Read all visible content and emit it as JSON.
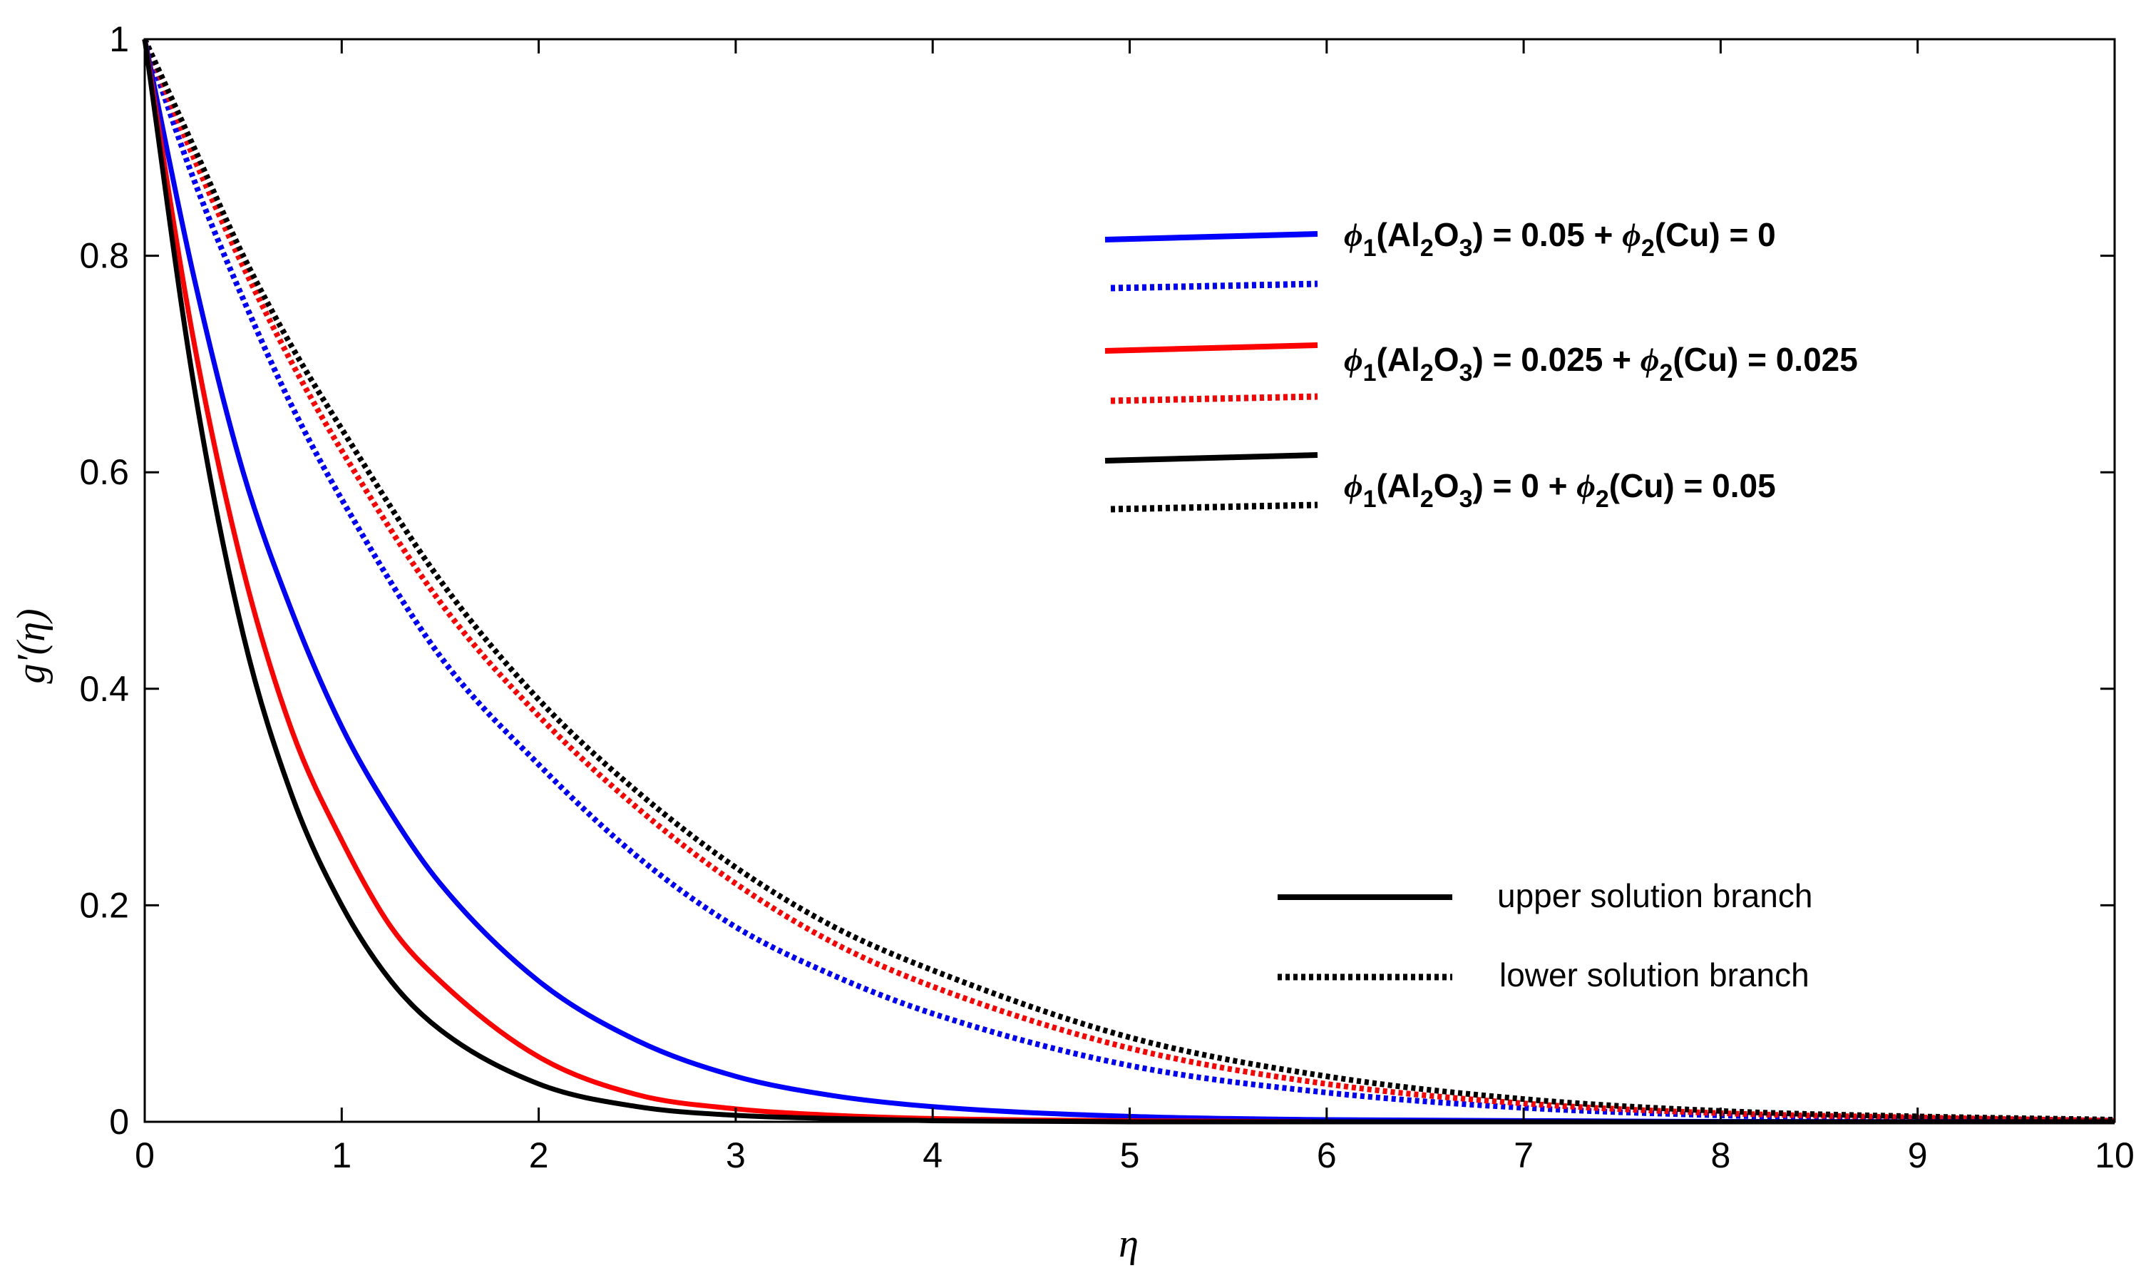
{
  "chart_data": {
    "type": "line",
    "title": "",
    "xlabel": "η",
    "ylabel": "g′(η)",
    "xlim": [
      0,
      10
    ],
    "ylim": [
      0,
      1
    ],
    "xticks": [
      0,
      1,
      2,
      3,
      4,
      5,
      6,
      7,
      8,
      9,
      10
    ],
    "yticks": [
      0,
      0.2,
      0.4,
      0.6,
      0.8,
      1
    ],
    "grid": false,
    "legend_position": "top-right",
    "series": [
      {
        "color": "#0000ff",
        "style": "solid",
        "x": [
          0,
          0.25,
          0.5,
          0.75,
          1,
          1.25,
          1.5,
          2,
          2.5,
          3,
          3.5,
          4,
          5,
          6,
          8,
          10
        ],
        "y": [
          1,
          0.78,
          0.6,
          0.47,
          0.365,
          0.285,
          0.22,
          0.13,
          0.075,
          0.042,
          0.024,
          0.014,
          0.005,
          0.002,
          0.0003,
          0
        ]
      },
      {
        "color": "#0000ff",
        "style": "dotted",
        "x": [
          0,
          0.25,
          0.5,
          0.75,
          1,
          1.5,
          2,
          2.5,
          3,
          3.5,
          4,
          5,
          6,
          7,
          8,
          9,
          10
        ],
        "y": [
          1,
          0.87,
          0.76,
          0.66,
          0.575,
          0.43,
          0.33,
          0.245,
          0.18,
          0.135,
          0.1,
          0.052,
          0.027,
          0.013,
          0.006,
          0.003,
          0.001
        ]
      },
      {
        "color": "#ff0000",
        "style": "solid",
        "x": [
          0,
          0.25,
          0.5,
          0.75,
          1,
          1.25,
          1.5,
          2,
          2.5,
          3,
          3.5,
          4,
          5,
          6,
          8,
          10
        ],
        "y": [
          1,
          0.72,
          0.51,
          0.36,
          0.26,
          0.18,
          0.13,
          0.06,
          0.025,
          0.012,
          0.006,
          0.003,
          0.001,
          0,
          0,
          0
        ]
      },
      {
        "color": "#ff0000",
        "style": "dotted",
        "x": [
          0,
          0.25,
          0.5,
          0.75,
          1,
          1.5,
          2,
          2.5,
          3,
          3.5,
          4,
          5,
          6,
          7,
          8,
          9,
          10
        ],
        "y": [
          1,
          0.89,
          0.79,
          0.7,
          0.62,
          0.48,
          0.375,
          0.29,
          0.22,
          0.165,
          0.125,
          0.068,
          0.035,
          0.017,
          0.008,
          0.004,
          0.001
        ]
      },
      {
        "color": "#000000",
        "style": "solid",
        "x": [
          0,
          0.25,
          0.5,
          0.75,
          1,
          1.25,
          1.5,
          2,
          2.5,
          3,
          3.5,
          4,
          5,
          6,
          8,
          10
        ],
        "y": [
          1,
          0.68,
          0.45,
          0.3,
          0.2,
          0.13,
          0.085,
          0.035,
          0.014,
          0.006,
          0.003,
          0.001,
          0,
          0,
          0,
          0
        ]
      },
      {
        "color": "#000000",
        "style": "dotted",
        "x": [
          0,
          0.25,
          0.5,
          0.75,
          1,
          1.5,
          2,
          2.5,
          3,
          3.5,
          4,
          5,
          6,
          7,
          8,
          9,
          10
        ],
        "y": [
          1,
          0.9,
          0.8,
          0.715,
          0.64,
          0.5,
          0.39,
          0.305,
          0.235,
          0.18,
          0.14,
          0.078,
          0.042,
          0.021,
          0.01,
          0.005,
          0.002
        ]
      }
    ],
    "legend": {
      "entries": [
        {
          "color": "#0000ff",
          "parts": [
            "ϕ",
            "1",
            "(Al",
            "2",
            "O",
            "3",
            ") = 0.05 + ",
            "ϕ",
            "2",
            "(Cu) = 0"
          ]
        },
        {
          "color": "#ff0000",
          "parts": [
            "ϕ",
            "1",
            "(Al",
            "2",
            "O",
            "3",
            ") = 0.025 + ",
            "ϕ",
            "2",
            "(Cu) = 0.025"
          ]
        },
        {
          "color": "#000000",
          "parts": [
            "ϕ",
            "1",
            "(Al",
            "2",
            "O",
            "3",
            ") = 0 + ",
            "ϕ",
            "2",
            "(Cu) = 0.05"
          ]
        }
      ],
      "branch_upper": "upper solution branch",
      "branch_lower": "lower solution branch"
    }
  }
}
